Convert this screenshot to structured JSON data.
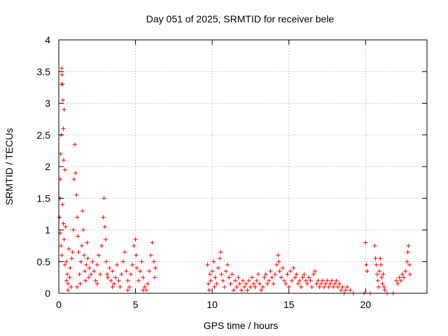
{
  "chart_data": {
    "type": "scatter",
    "title": "Day 051 of 2025, SRMTID for receiver bele",
    "xlabel": "GPS time / hours",
    "ylabel": "SRMTID / TECUs",
    "xlim": [
      0,
      24
    ],
    "ylim": [
      0,
      4
    ],
    "x_ticks": [
      0,
      5,
      10,
      15,
      20
    ],
    "x_tick_labels": [
      "0",
      "5",
      "10",
      "15",
      "20"
    ],
    "y_ticks": [
      0,
      0.5,
      1,
      1.5,
      2,
      2.5,
      3,
      3.5,
      4
    ],
    "y_tick_labels": [
      "0",
      "0.5",
      "1",
      "1.5",
      "2",
      "2.5",
      "3",
      "3.5",
      "4"
    ],
    "grid": true,
    "marker": "plus",
    "color": "#ff0000",
    "series": [
      {
        "name": "SRMTID",
        "points": [
          [
            0.05,
            1.2
          ],
          [
            0.08,
            1.5
          ],
          [
            0.1,
            1.8
          ],
          [
            0.12,
            2.2
          ],
          [
            0.15,
            2.5
          ],
          [
            0.18,
            3.3
          ],
          [
            0.2,
            3.55
          ],
          [
            0.22,
            3.45
          ],
          [
            0.25,
            3.3
          ],
          [
            0.27,
            3.05
          ],
          [
            0.3,
            2.6
          ],
          [
            0.32,
            2.1
          ],
          [
            0.35,
            2.9
          ],
          [
            0.4,
            1.95
          ],
          [
            0.1,
            0.95
          ],
          [
            0.15,
            0.75
          ],
          [
            0.2,
            0.6
          ],
          [
            0.25,
            1.4
          ],
          [
            0.3,
            1.1
          ],
          [
            0.35,
            0.85
          ],
          [
            0.4,
            0.45
          ],
          [
            0.45,
            1.05
          ],
          [
            0.5,
            0.5
          ],
          [
            0.55,
            0.3
          ],
          [
            0.6,
            0.15
          ],
          [
            0.6,
            0.05
          ],
          [
            0.65,
            0.7
          ],
          [
            0.7,
            0.25
          ],
          [
            0.75,
            0.4
          ],
          [
            0.8,
            0.1
          ],
          [
            0.85,
            0.55
          ],
          [
            0.9,
            0.65
          ],
          [
            0.95,
            1.0
          ],
          [
            1.0,
            1.8
          ],
          [
            1.05,
            2.35
          ],
          [
            1.1,
            1.9
          ],
          [
            1.15,
            1.55
          ],
          [
            1.2,
            1.2
          ],
          [
            1.25,
            0.9
          ],
          [
            1.3,
            0.65
          ],
          [
            1.35,
            0.3
          ],
          [
            1.4,
            0.15
          ],
          [
            1.45,
            0.5
          ],
          [
            1.5,
            0.75
          ],
          [
            1.55,
            1.3
          ],
          [
            1.6,
            1.0
          ],
          [
            1.65,
            0.6
          ],
          [
            1.7,
            0.35
          ],
          [
            1.75,
            0.2
          ],
          [
            1.8,
            0.45
          ],
          [
            1.85,
            0.8
          ],
          [
            1.9,
            0.55
          ],
          [
            1.95,
            0.25
          ],
          [
            2.0,
            0.4
          ],
          [
            2.1,
            0.3
          ],
          [
            2.2,
            0.5
          ],
          [
            2.3,
            0.35
          ],
          [
            2.4,
            0.2
          ],
          [
            2.5,
            0.45
          ],
          [
            2.6,
            0.6
          ],
          [
            2.7,
            0.3
          ],
          [
            2.8,
            0.75
          ],
          [
            2.9,
            1.2
          ],
          [
            2.95,
            1.5
          ],
          [
            3.0,
            1.05
          ],
          [
            3.05,
            0.85
          ],
          [
            3.1,
            0.5
          ],
          [
            3.15,
            0.3
          ],
          [
            3.2,
            0.25
          ],
          [
            3.3,
            0.4
          ],
          [
            3.4,
            0.2
          ],
          [
            3.5,
            0.35
          ],
          [
            3.6,
            0.15
          ],
          [
            3.7,
            0.25
          ],
          [
            3.8,
            0.45
          ],
          [
            3.9,
            0.2
          ],
          [
            4.0,
            0.1
          ],
          [
            4.1,
            0.3
          ],
          [
            4.2,
            0.5
          ],
          [
            4.3,
            0.65
          ],
          [
            4.4,
            0.35
          ],
          [
            4.5,
            0.2
          ],
          [
            4.6,
            0.1
          ],
          [
            4.7,
            0.3
          ],
          [
            4.8,
            0.45
          ],
          [
            4.9,
            0.75
          ],
          [
            5.0,
            0.85
          ],
          [
            5.05,
            0.6
          ],
          [
            5.1,
            0.4
          ],
          [
            5.2,
            0.2
          ],
          [
            5.3,
            0.35
          ],
          [
            5.4,
            0.5
          ],
          [
            5.5,
            0.25
          ],
          [
            5.6,
            0.1
          ],
          [
            5.7,
            0.05
          ],
          [
            5.8,
            0.15
          ],
          [
            5.9,
            0.35
          ],
          [
            6.0,
            0.6
          ],
          [
            6.1,
            0.8
          ],
          [
            6.2,
            0.5
          ],
          [
            6.25,
            0.25
          ],
          [
            6.3,
            0.4
          ],
          [
            0.5,
            0.2
          ],
          [
            1.2,
            0.1
          ],
          [
            2.5,
            0.15
          ],
          [
            3.5,
            0.1
          ],
          [
            4.5,
            0.05
          ],
          [
            5.5,
            0.05
          ],
          [
            9.7,
            0.45
          ],
          [
            9.75,
            0.15
          ],
          [
            9.8,
            0.05
          ],
          [
            9.85,
            0.3
          ],
          [
            9.9,
            0.2
          ],
          [
            10.0,
            0.35
          ],
          [
            10.1,
            0.5
          ],
          [
            10.15,
            0.1
          ],
          [
            10.2,
            0.25
          ],
          [
            10.3,
            0.15
          ],
          [
            10.4,
            0.4
          ],
          [
            10.5,
            0.55
          ],
          [
            10.55,
            0.65
          ],
          [
            10.6,
            0.3
          ],
          [
            10.7,
            0.2
          ],
          [
            10.8,
            0.1
          ],
          [
            10.9,
            0.35
          ],
          [
            11.0,
            0.45
          ],
          [
            11.1,
            0.25
          ],
          [
            11.2,
            0.15
          ],
          [
            11.3,
            0.3
          ],
          [
            11.4,
            0.05
          ],
          [
            11.5,
            0.2
          ],
          [
            11.6,
            0.1
          ],
          [
            11.7,
            0.25
          ],
          [
            11.8,
            0.15
          ],
          [
            11.9,
            0.05
          ],
          [
            12.0,
            0.2
          ],
          [
            12.1,
            0.1
          ],
          [
            12.2,
            0.15
          ],
          [
            12.3,
            0.05
          ],
          [
            12.4,
            0.2
          ],
          [
            12.5,
            0.1
          ],
          [
            12.6,
            0.25
          ],
          [
            12.7,
            0.15
          ],
          [
            12.8,
            0.1
          ],
          [
            12.9,
            0.2
          ],
          [
            13.0,
            0.3
          ],
          [
            13.1,
            0.15
          ],
          [
            13.2,
            0.05
          ],
          [
            13.3,
            0.1
          ],
          [
            13.4,
            0.25
          ],
          [
            13.5,
            0.3
          ],
          [
            13.6,
            0.15
          ],
          [
            13.7,
            0.2
          ],
          [
            13.8,
            0.35
          ],
          [
            13.9,
            0.25
          ],
          [
            14.0,
            0.15
          ],
          [
            14.1,
            0.3
          ],
          [
            14.2,
            0.45
          ],
          [
            14.3,
            0.6
          ],
          [
            14.35,
            0.5
          ],
          [
            14.4,
            0.35
          ],
          [
            14.5,
            0.25
          ],
          [
            14.6,
            0.4
          ],
          [
            14.7,
            0.2
          ],
          [
            14.8,
            0.15
          ],
          [
            14.9,
            0.3
          ],
          [
            15.0,
            0.1
          ],
          [
            15.1,
            0.35
          ],
          [
            15.2,
            0.2
          ],
          [
            15.3,
            0.4
          ],
          [
            15.4,
            0.25
          ],
          [
            15.5,
            0.3
          ],
          [
            15.6,
            0.15
          ],
          [
            15.7,
            0.2
          ],
          [
            15.8,
            0.1
          ],
          [
            15.9,
            0.25
          ],
          [
            16.0,
            0.3
          ],
          [
            16.1,
            0.2
          ],
          [
            16.2,
            0.15
          ],
          [
            16.3,
            0.25
          ],
          [
            16.4,
            0.2
          ],
          [
            16.5,
            0.1
          ],
          [
            16.6,
            0.3
          ],
          [
            16.7,
            0.35
          ],
          [
            16.8,
            0.15
          ],
          [
            16.9,
            0.2
          ],
          [
            17.0,
            0.1
          ],
          [
            17.1,
            0.15
          ],
          [
            17.2,
            0.2
          ],
          [
            17.3,
            0.1
          ],
          [
            17.4,
            0.15
          ],
          [
            17.5,
            0.2
          ],
          [
            17.6,
            0.1
          ],
          [
            17.7,
            0.15
          ],
          [
            17.8,
            0.2
          ],
          [
            17.9,
            0.1
          ],
          [
            18.0,
            0.15
          ],
          [
            18.1,
            0.2
          ],
          [
            18.2,
            0.1
          ],
          [
            18.3,
            0.15
          ],
          [
            18.4,
            0.05
          ],
          [
            18.5,
            0.1
          ],
          [
            18.6,
            0.0
          ],
          [
            18.7,
            0.05
          ],
          [
            18.8,
            0.1
          ],
          [
            19.0,
            0.05
          ],
          [
            19.2,
            0.0
          ],
          [
            19.9,
            0.0
          ],
          [
            20.0,
            0.8
          ],
          [
            20.05,
            0.45
          ],
          [
            20.1,
            0.35
          ],
          [
            20.3,
            0.0
          ],
          [
            20.6,
            0.75
          ],
          [
            20.65,
            0.55
          ],
          [
            20.7,
            0.45
          ],
          [
            20.75,
            0.3
          ],
          [
            20.8,
            0.2
          ],
          [
            20.85,
            0.1
          ],
          [
            20.9,
            0.35
          ],
          [
            20.95,
            0.55
          ],
          [
            21.0,
            0.45
          ],
          [
            21.05,
            0.25
          ],
          [
            21.1,
            0.15
          ],
          [
            21.15,
            0.3
          ],
          [
            21.2,
            0.1
          ],
          [
            21.25,
            0.05
          ],
          [
            21.4,
            0.0
          ],
          [
            21.8,
            0.0
          ],
          [
            22.0,
            0.2
          ],
          [
            22.1,
            0.15
          ],
          [
            22.2,
            0.25
          ],
          [
            22.3,
            0.2
          ],
          [
            22.4,
            0.3
          ],
          [
            22.5,
            0.25
          ],
          [
            22.6,
            0.35
          ],
          [
            22.7,
            0.5
          ],
          [
            22.75,
            0.65
          ],
          [
            22.8,
            0.75
          ],
          [
            22.85,
            0.45
          ],
          [
            22.9,
            0.3
          ]
        ]
      }
    ]
  }
}
